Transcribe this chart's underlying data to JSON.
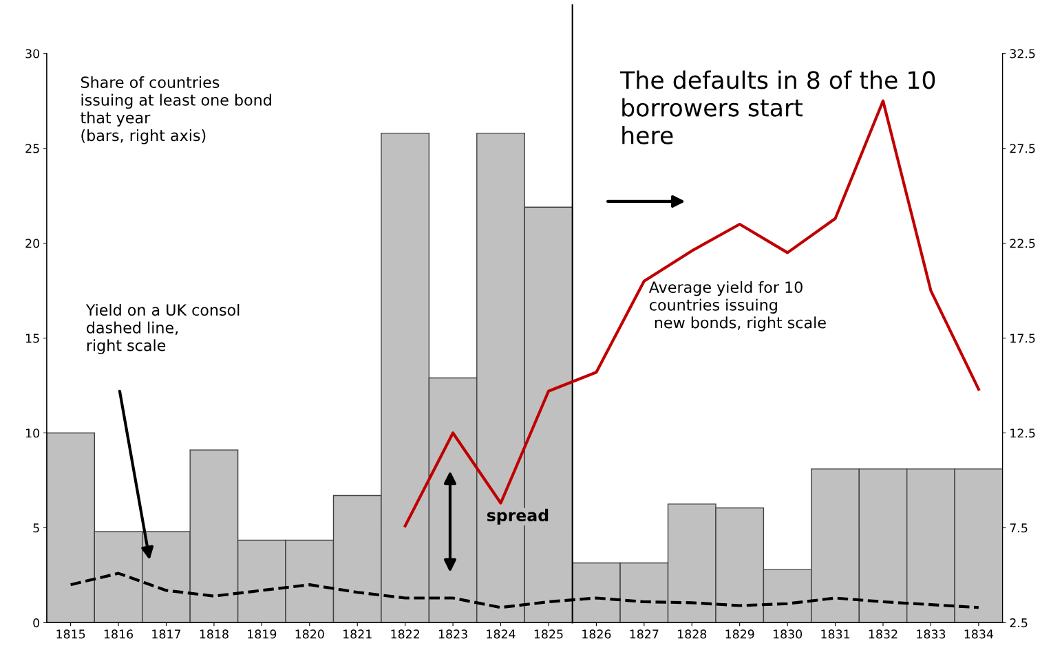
{
  "chart_data": {
    "type": "bar",
    "x": [
      1815,
      1816,
      1817,
      1818,
      1819,
      1820,
      1821,
      1822,
      1823,
      1824,
      1825,
      1826,
      1827,
      1828,
      1829,
      1830,
      1831,
      1832,
      1833,
      1834
    ],
    "xlim": [
      1814.5,
      1834.5
    ],
    "xticks": [
      1815,
      1816,
      1817,
      1818,
      1819,
      1820,
      1821,
      1822,
      1823,
      1824,
      1825,
      1826,
      1827,
      1828,
      1829,
      1830,
      1831,
      1832,
      1833,
      1834
    ],
    "ylim": [
      0,
      30
    ],
    "yticks": [
      0,
      5,
      10,
      15,
      20,
      25,
      30
    ],
    "y2lim": [
      2.5,
      32.5
    ],
    "y2ticks": [
      2.5,
      7.5,
      12.5,
      17.5,
      22.5,
      27.5,
      32.5
    ],
    "series": [
      {
        "color": "#c0c0c0",
        "values": [
          10.0,
          4.8,
          4.8,
          9.1,
          4.35,
          4.35,
          6.7,
          25.8,
          12.9,
          25.8,
          21.9,
          3.15,
          3.15,
          6.25,
          6.05,
          2.8,
          8.1,
          8.1,
          8.1,
          8.1
        ]
      },
      {
        "type": "line",
        "axis": "y2",
        "color": "#c00000",
        "line_style": "solid",
        "values": [
          null,
          null,
          null,
          null,
          null,
          null,
          null,
          7.6,
          12.5,
          8.8,
          14.7,
          15.7,
          20.5,
          22.1,
          23.5,
          22.0,
          23.8,
          30.0,
          20.0,
          14.8
        ]
      },
      {
        "type": "line",
        "axis": "y2",
        "color": "#000000",
        "line_style": "dashed",
        "values": [
          4.5,
          5.1,
          4.2,
          3.9,
          4.2,
          4.5,
          4.1,
          3.8,
          3.8,
          3.3,
          3.6,
          3.8,
          3.6,
          3.55,
          3.4,
          3.5,
          3.8,
          3.6,
          3.45,
          3.3
        ]
      }
    ],
    "ref_lines": [
      {
        "axis": "x",
        "value": 1825.5,
        "color": "#000000"
      }
    ],
    "grid": false,
    "legend": false,
    "annotations": [
      "Share of countries\nissuing at least one bond\nthat year\n(bars, right axis)",
      "Yield on a UK consol\ndashed line,\nright scale",
      "Average yield for 10\ncountries issuing\n new bonds, right scale",
      "The defaults in 8 of the 10\nborrowers start\nhere",
      "spread"
    ]
  }
}
